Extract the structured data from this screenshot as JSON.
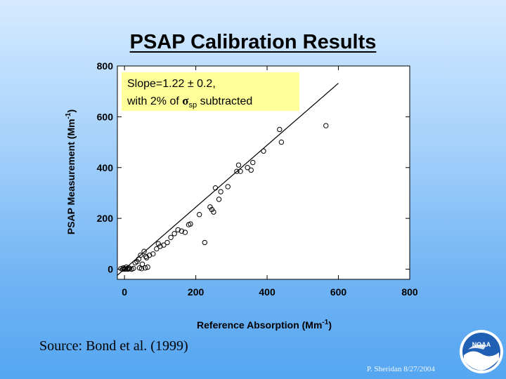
{
  "slide": {
    "title": "PSAP Calibration Results",
    "source": "Source: Bond et al. (1999)",
    "footer": "P. Sheridan  8/27/2004",
    "logo_text": "NOAA"
  },
  "annotation": {
    "line1": "Slope=1.22 ± 0.2,",
    "line2_pre": "with 2% of ",
    "sigma": "σ",
    "sigma_sub": "sp",
    "line2_post": " subtracted"
  },
  "colors": {
    "background_top": "#d6eaff",
    "background_bottom": "#55a6f1",
    "annotation_fill": "#ffff99",
    "plot_fill": "#ffffff"
  },
  "chart_data": {
    "type": "scatter",
    "xlabel": "Reference Absorption (Mm",
    "xlabel_sup": "-1",
    "xlabel_close": ")",
    "ylabel": "PSAP Measurement (Mm",
    "ylabel_sup": "-1",
    "ylabel_close": ")",
    "xlim": [
      -20,
      800
    ],
    "ylim": [
      -40,
      800
    ],
    "x_ticks": [
      0,
      200,
      400,
      600,
      800
    ],
    "y_ticks": [
      0,
      200,
      400,
      600,
      800
    ],
    "x_tick_labels": [
      "0",
      "200",
      "400",
      "600",
      "800"
    ],
    "y_tick_labels": [
      "0",
      "200",
      "400",
      "600",
      "800"
    ],
    "grid": false,
    "fit_line": {
      "x": [
        -20,
        600
      ],
      "y": [
        -24,
        732
      ]
    },
    "points": [
      [
        -10,
        2
      ],
      [
        -5,
        0
      ],
      [
        -3,
        5
      ],
      [
        0,
        2
      ],
      [
        2,
        0
      ],
      [
        5,
        8
      ],
      [
        8,
        3
      ],
      [
        10,
        0
      ],
      [
        12,
        5
      ],
      [
        15,
        2
      ],
      [
        20,
        0
      ],
      [
        25,
        3
      ],
      [
        30,
        25
      ],
      [
        35,
        30
      ],
      [
        40,
        40
      ],
      [
        42,
        5
      ],
      [
        45,
        55
      ],
      [
        48,
        2
      ],
      [
        50,
        20
      ],
      [
        55,
        70
      ],
      [
        58,
        5
      ],
      [
        60,
        50
      ],
      [
        62,
        45
      ],
      [
        65,
        8
      ],
      [
        70,
        55
      ],
      [
        80,
        60
      ],
      [
        90,
        80
      ],
      [
        95,
        100
      ],
      [
        100,
        90
      ],
      [
        110,
        95
      ],
      [
        120,
        105
      ],
      [
        130,
        125
      ],
      [
        140,
        140
      ],
      [
        150,
        155
      ],
      [
        160,
        150
      ],
      [
        170,
        145
      ],
      [
        180,
        175
      ],
      [
        185,
        178
      ],
      [
        210,
        215
      ],
      [
        225,
        105
      ],
      [
        240,
        245
      ],
      [
        245,
        235
      ],
      [
        250,
        225
      ],
      [
        255,
        320
      ],
      [
        265,
        275
      ],
      [
        270,
        305
      ],
      [
        290,
        325
      ],
      [
        315,
        385
      ],
      [
        320,
        410
      ],
      [
        325,
        385
      ],
      [
        345,
        400
      ],
      [
        355,
        390
      ],
      [
        360,
        420
      ],
      [
        390,
        465
      ],
      [
        435,
        550
      ],
      [
        440,
        500
      ],
      [
        565,
        565
      ]
    ]
  }
}
